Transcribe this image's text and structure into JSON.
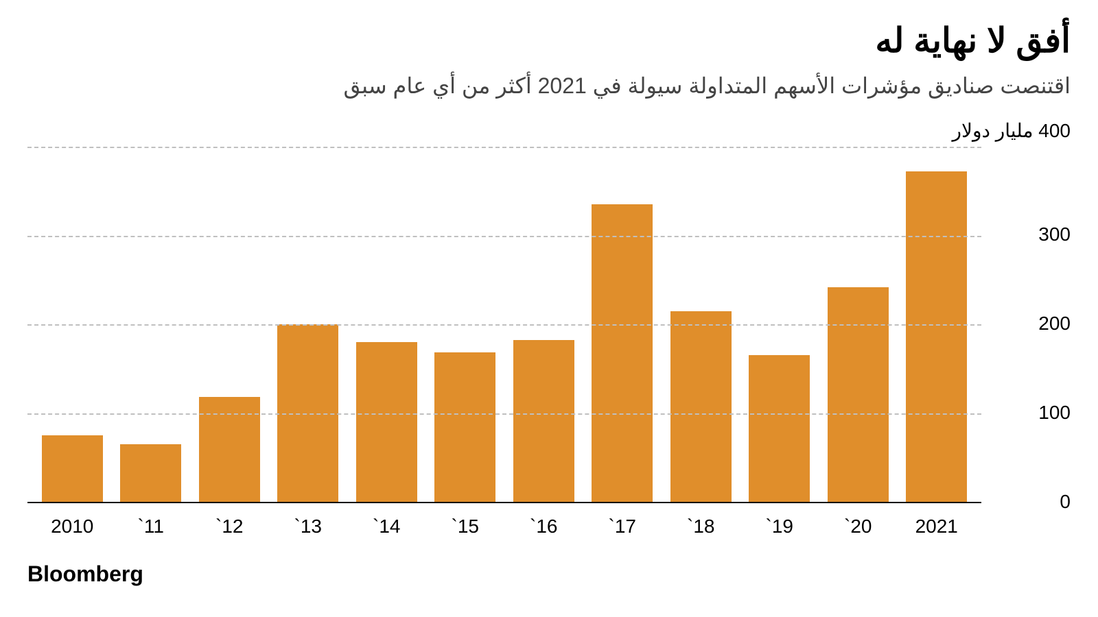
{
  "title": "أفق لا نهاية له",
  "subtitle": "اقتنصت صناديق مؤشرات الأسهم المتداولة سيولة في 2021 أكثر من أي عام سبق",
  "source": "Bloomberg",
  "chart": {
    "type": "bar",
    "categories": [
      "2010",
      "`11",
      "`12",
      "`13",
      "`14",
      "`15",
      "`16",
      "`17",
      "`18",
      "`19",
      "`20",
      "2021"
    ],
    "values": [
      75,
      65,
      118,
      200,
      180,
      168,
      182,
      335,
      215,
      165,
      242,
      372
    ],
    "bar_color": "#e08e2b",
    "background_color": "#ffffff",
    "grid_color": "#bfbfbf",
    "axis_color": "#000000",
    "ylim": [
      0,
      400
    ],
    "yticks": [
      0,
      100,
      200,
      300
    ],
    "y_top_label": "400 مليار دولار",
    "y_tick_labels": [
      "0",
      "100",
      "200",
      "300"
    ],
    "title_fontsize": 50,
    "subtitle_fontsize": 32,
    "tick_fontsize": 28,
    "source_fontsize": 32,
    "bar_width_ratio": 0.78,
    "grid_dash": "2px dashed",
    "x_axis_border": "2px solid"
  }
}
